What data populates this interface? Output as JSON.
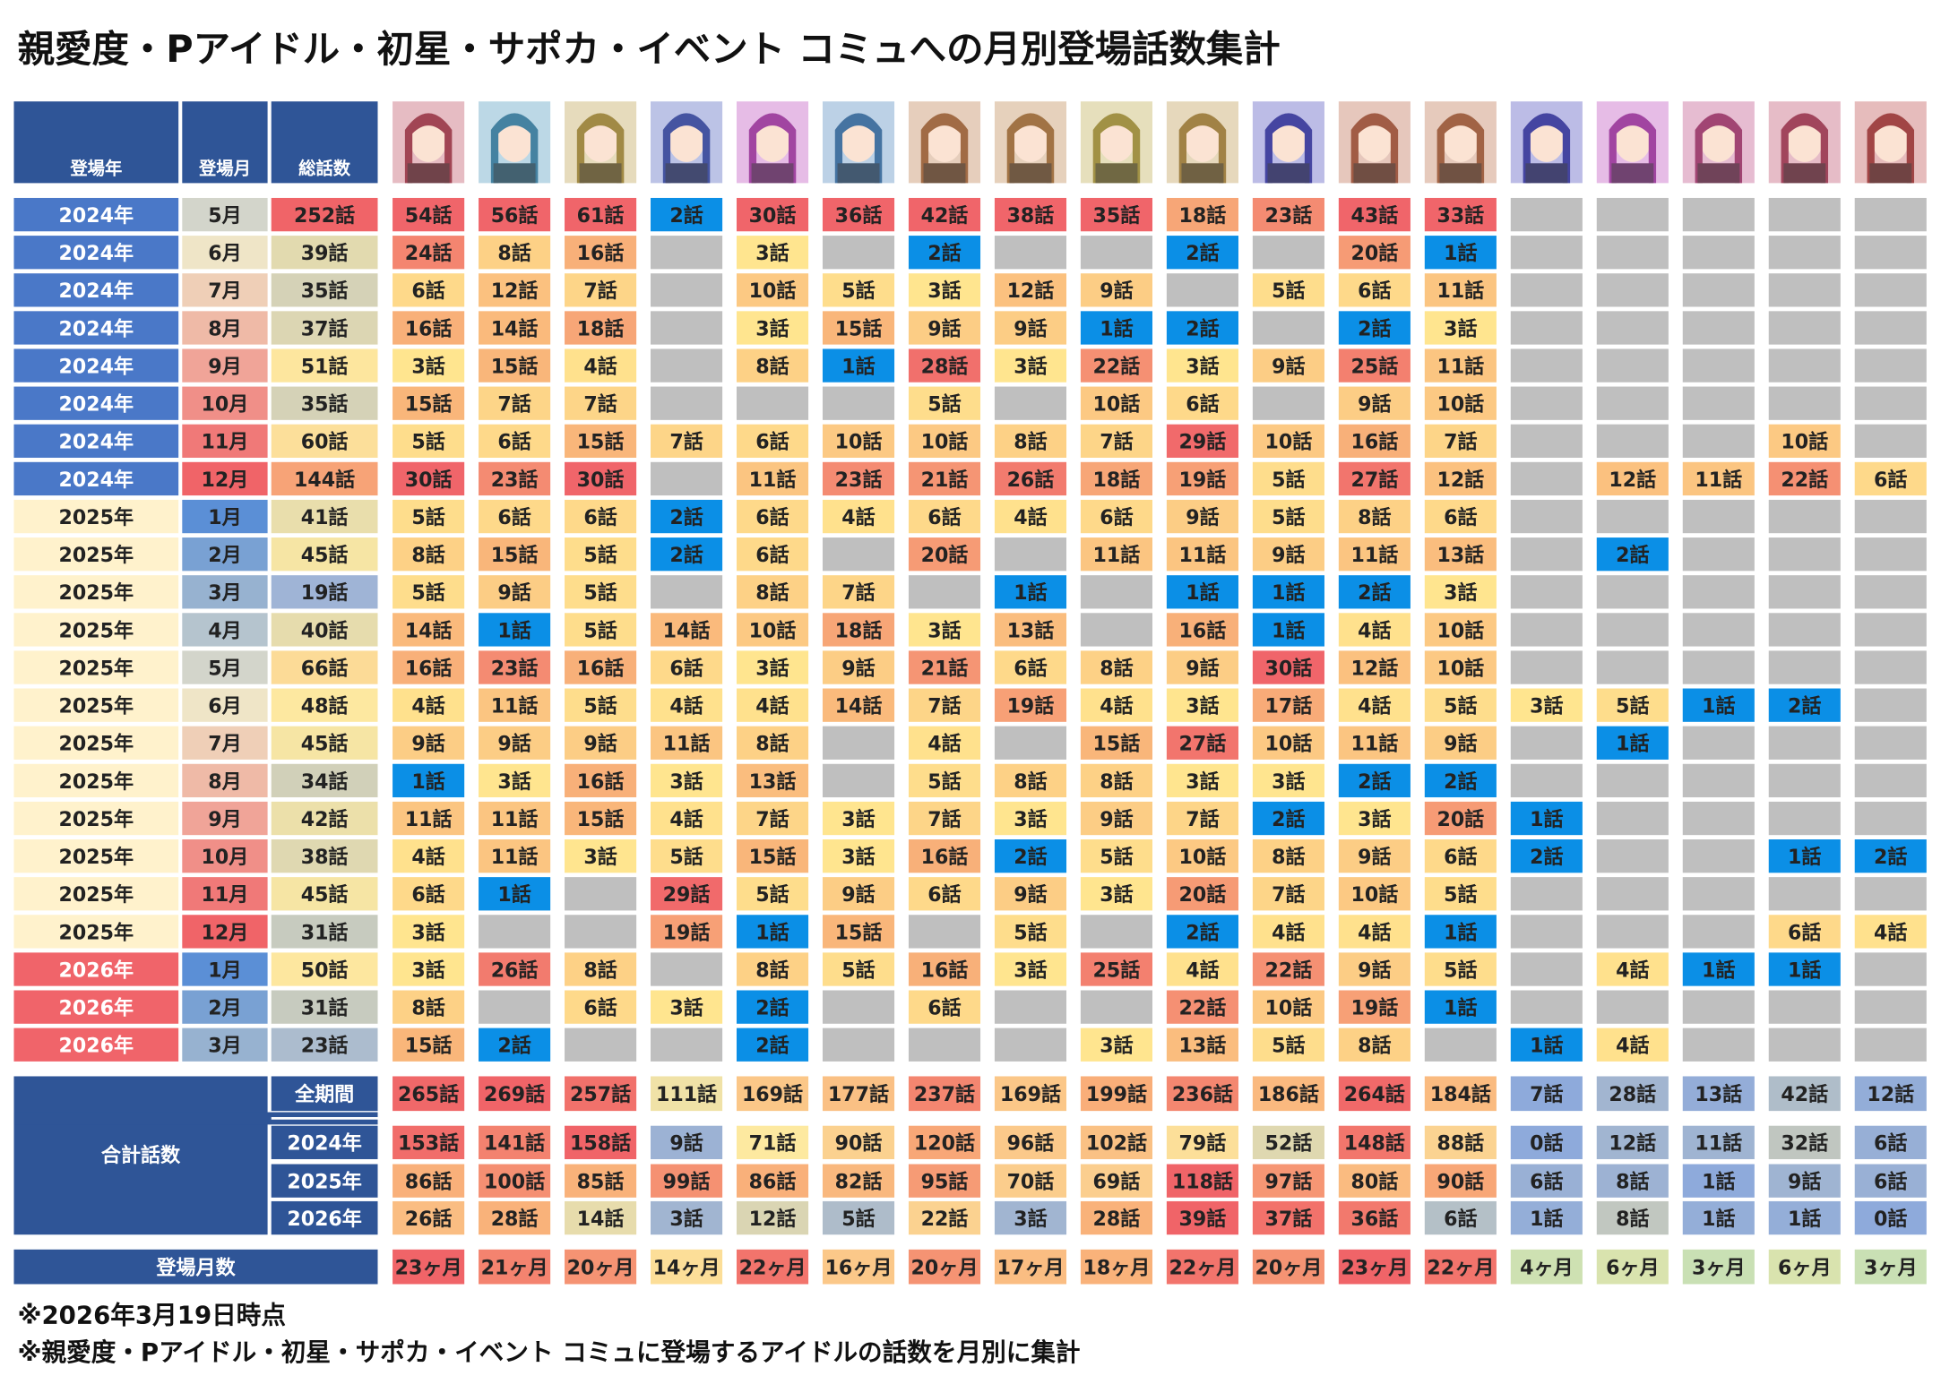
{
  "title": "親愛度・Pアイドル・初星・サポカ・イベント コミュへの月別登場話数集計",
  "header": {
    "year": "登場年",
    "month": "登場月",
    "total": "総話数"
  },
  "rows": [
    {
      "year": "2024年",
      "month": "5月",
      "total": "252話",
      "counts": [
        "54話",
        "56話",
        "61話",
        "2話",
        "30話",
        "36話",
        "42話",
        "38話",
        "35話",
        "18話",
        "23話",
        "43話",
        "33話",
        null,
        null,
        null,
        null,
        null
      ]
    },
    {
      "year": "2024年",
      "month": "6月",
      "total": "39話",
      "counts": [
        "24話",
        "8話",
        "16話",
        null,
        "3話",
        null,
        "2話",
        null,
        null,
        "2話",
        null,
        "20話",
        "1話",
        null,
        null,
        null,
        null,
        null
      ]
    },
    {
      "year": "2024年",
      "month": "7月",
      "total": "35話",
      "counts": [
        "6話",
        "12話",
        "7話",
        null,
        "10話",
        "5話",
        "3話",
        "12話",
        "9話",
        null,
        "5話",
        "6話",
        "11話",
        null,
        null,
        null,
        null,
        null
      ]
    },
    {
      "year": "2024年",
      "month": "8月",
      "total": "37話",
      "counts": [
        "16話",
        "14話",
        "18話",
        null,
        "3話",
        "15話",
        "9話",
        "9話",
        "1話",
        "2話",
        null,
        "2話",
        "3話",
        null,
        null,
        null,
        null,
        null
      ]
    },
    {
      "year": "2024年",
      "month": "9月",
      "total": "51話",
      "counts": [
        "3話",
        "15話",
        "4話",
        null,
        "8話",
        "1話",
        "28話",
        "3話",
        "22話",
        "3話",
        "9話",
        "25話",
        "11話",
        null,
        null,
        null,
        null,
        null
      ]
    },
    {
      "year": "2024年",
      "month": "10月",
      "total": "35話",
      "counts": [
        "15話",
        "7話",
        "7話",
        null,
        null,
        null,
        "5話",
        null,
        "10話",
        "6話",
        null,
        "9話",
        "10話",
        null,
        null,
        null,
        null,
        null
      ]
    },
    {
      "year": "2024年",
      "month": "11月",
      "total": "60話",
      "counts": [
        "5話",
        "6話",
        "15話",
        "7話",
        "6話",
        "10話",
        "10話",
        "8話",
        "7話",
        "29話",
        "10話",
        "16話",
        "7話",
        null,
        null,
        null,
        "10話",
        null
      ]
    },
    {
      "year": "2024年",
      "month": "12月",
      "total": "144話",
      "counts": [
        "30話",
        "23話",
        "30話",
        null,
        "11話",
        "23話",
        "21話",
        "26話",
        "18話",
        "19話",
        "5話",
        "27話",
        "12話",
        null,
        "12話",
        "11話",
        "22話",
        "6話"
      ]
    },
    {
      "year": "2025年",
      "month": "1月",
      "total": "41話",
      "counts": [
        "5話",
        "6話",
        "6話",
        "2話",
        "6話",
        "4話",
        "6話",
        "4話",
        "6話",
        "9話",
        "5話",
        "8話",
        "6話",
        null,
        null,
        null,
        null,
        null
      ]
    },
    {
      "year": "2025年",
      "month": "2月",
      "total": "45話",
      "counts": [
        "8話",
        "15話",
        "5話",
        "2話",
        "6話",
        null,
        "20話",
        null,
        "11話",
        "11話",
        "9話",
        "11話",
        "13話",
        null,
        "2話",
        null,
        null,
        null
      ]
    },
    {
      "year": "2025年",
      "month": "3月",
      "total": "19話",
      "counts": [
        "5話",
        "9話",
        "5話",
        null,
        "8話",
        "7話",
        null,
        "1話",
        null,
        "1話",
        "1話",
        "2話",
        "3話",
        null,
        null,
        null,
        null,
        null
      ]
    },
    {
      "year": "2025年",
      "month": "4月",
      "total": "40話",
      "counts": [
        "14話",
        "1話",
        "5話",
        "14話",
        "10話",
        "18話",
        "3話",
        "13話",
        null,
        "16話",
        "1話",
        "4話",
        "10話",
        null,
        null,
        null,
        null,
        null
      ]
    },
    {
      "year": "2025年",
      "month": "5月",
      "total": "66話",
      "counts": [
        "16話",
        "23話",
        "16話",
        "6話",
        "3話",
        "9話",
        "21話",
        "6話",
        "8話",
        "9話",
        "30話",
        "12話",
        "10話",
        null,
        null,
        null,
        null,
        null
      ]
    },
    {
      "year": "2025年",
      "month": "6月",
      "total": "48話",
      "counts": [
        "4話",
        "11話",
        "5話",
        "4話",
        "4話",
        "14話",
        "7話",
        "19話",
        "4話",
        "3話",
        "17話",
        "4話",
        "5話",
        "3話",
        "5話",
        "1話",
        "2話",
        null
      ]
    },
    {
      "year": "2025年",
      "month": "7月",
      "total": "45話",
      "counts": [
        "9話",
        "9話",
        "9話",
        "11話",
        "8話",
        null,
        "4話",
        null,
        "15話",
        "27話",
        "10話",
        "11話",
        "9話",
        null,
        "1話",
        null,
        null,
        null
      ]
    },
    {
      "year": "2025年",
      "month": "8月",
      "total": "34話",
      "counts": [
        "1話",
        "3話",
        "16話",
        "3話",
        "13話",
        null,
        "5話",
        "8話",
        "8話",
        "3話",
        "3話",
        "2話",
        "2話",
        null,
        null,
        null,
        null,
        null
      ]
    },
    {
      "year": "2025年",
      "month": "9月",
      "total": "42話",
      "counts": [
        "11話",
        "11話",
        "15話",
        "4話",
        "7話",
        "3話",
        "7話",
        "3話",
        "9話",
        "7話",
        "2話",
        "3話",
        "20話",
        "1話",
        null,
        null,
        null,
        null
      ]
    },
    {
      "year": "2025年",
      "month": "10月",
      "total": "38話",
      "counts": [
        "4話",
        "11話",
        "3話",
        "5話",
        "15話",
        "3話",
        "16話",
        "2話",
        "5話",
        "10話",
        "8話",
        "9話",
        "6話",
        "2話",
        null,
        null,
        "1話",
        "2話"
      ]
    },
    {
      "year": "2025年",
      "month": "11月",
      "total": "45話",
      "counts": [
        "6話",
        "1話",
        null,
        "29話",
        "5話",
        "9話",
        "6話",
        "9話",
        "3話",
        "20話",
        "7話",
        "10話",
        "5話",
        null,
        null,
        null,
        null,
        null
      ]
    },
    {
      "year": "2025年",
      "month": "12月",
      "total": "31話",
      "counts": [
        "3話",
        null,
        null,
        "19話",
        "1話",
        "15話",
        null,
        "5話",
        null,
        "2話",
        "4話",
        "4話",
        "1話",
        null,
        null,
        null,
        "6話",
        "4話"
      ]
    },
    {
      "year": "2026年",
      "month": "1月",
      "total": "50話",
      "counts": [
        "3話",
        "26話",
        "8話",
        null,
        "8話",
        "5話",
        "16話",
        "3話",
        "25話",
        "4話",
        "22話",
        "9話",
        "5話",
        null,
        "4話",
        "1話",
        "1話",
        null
      ]
    },
    {
      "year": "2026年",
      "month": "2月",
      "total": "31話",
      "counts": [
        "8話",
        null,
        "6話",
        "3話",
        "2話",
        null,
        "6話",
        null,
        null,
        "22話",
        "10話",
        "19話",
        "1話",
        null,
        null,
        null,
        null,
        null
      ]
    },
    {
      "year": "2026年",
      "month": "3月",
      "total": "23話",
      "counts": [
        "15話",
        "2話",
        null,
        null,
        "2話",
        null,
        null,
        null,
        "3話",
        "13話",
        "5話",
        "8話",
        null,
        "1話",
        "4話",
        null,
        null,
        null
      ]
    }
  ],
  "summary": {
    "label": "合計話数",
    "rows": [
      {
        "period": "全期間",
        "counts": [
          "265話",
          "269話",
          "257話",
          "111話",
          "169話",
          "177話",
          "237話",
          "169話",
          "199話",
          "236話",
          "186話",
          "264話",
          "184話",
          "7話",
          "28話",
          "13話",
          "42話",
          "12話"
        ]
      },
      {
        "period": "2024年",
        "counts": [
          "153話",
          "141話",
          "158話",
          "9話",
          "71話",
          "90話",
          "120話",
          "96話",
          "102話",
          "79話",
          "52話",
          "148話",
          "88話",
          "0話",
          "12話",
          "11話",
          "32話",
          "6話"
        ]
      },
      {
        "period": "2025年",
        "counts": [
          "86話",
          "100話",
          "85話",
          "99話",
          "86話",
          "82話",
          "95話",
          "70話",
          "69話",
          "118話",
          "97話",
          "80話",
          "90話",
          "6話",
          "8話",
          "1話",
          "9話",
          "6話"
        ]
      },
      {
        "period": "2026年",
        "counts": [
          "26話",
          "28話",
          "14話",
          "3話",
          "12話",
          "5話",
          "22話",
          "3話",
          "28話",
          "39話",
          "37話",
          "36話",
          "6話",
          "1話",
          "8話",
          "1話",
          "1話",
          "0話"
        ]
      }
    ]
  },
  "months_appeared": {
    "label": "登場月数",
    "counts": [
      "23ヶ月",
      "21ヶ月",
      "20ヶ月",
      "14ヶ月",
      "22ヶ月",
      "16ヶ月",
      "20ヶ月",
      "17ヶ月",
      "18ヶ月",
      "22ヶ月",
      "20ヶ月",
      "23ヶ月",
      "22ヶ月",
      "4ヶ月",
      "6ヶ月",
      "3ヶ月",
      "6ヶ月",
      "3ヶ月"
    ]
  },
  "notes": [
    "※2026年3月19日時点",
    "※親愛度・Pアイドル・初星・サポカ・イベント コミュに登場するアイドルの話数を月別に集計"
  ]
}
